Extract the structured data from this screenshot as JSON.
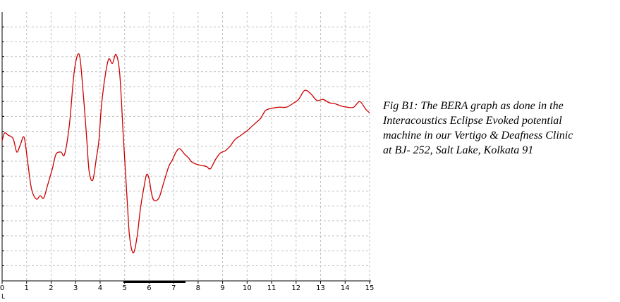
{
  "caption": {
    "lines": [
      "Fig B1: The BERA graph as done in the",
      "Interacoustics Eclipse Evoked potential",
      "machine in our Vertigo & Deafness Clinic",
      "at BJ- 252, Salt Lake, Kolkata 91"
    ]
  },
  "chart_data": {
    "type": "line",
    "title": "",
    "xlabel": "",
    "ylabel": "",
    "x_ticks": [
      "0",
      "1",
      "2",
      "3",
      "4",
      "5",
      "6",
      "7",
      "8",
      "9",
      "10",
      "11",
      "12",
      "13",
      "14",
      "15"
    ],
    "x_small_label": "L",
    "xlim": [
      0,
      15
    ],
    "ylim": [
      -1.2,
      1.2
    ],
    "grid": true,
    "series": [
      {
        "color": "#cc0000",
        "x": [
          0,
          0.1,
          0.25,
          0.45,
          0.6,
          0.75,
          0.9,
          1.05,
          1.2,
          1.4,
          1.55,
          1.7,
          1.85,
          2.05,
          2.2,
          2.4,
          2.55,
          2.75,
          2.95,
          3.15,
          3.3,
          3.45,
          3.55,
          3.7,
          3.85,
          3.95,
          4.05,
          4.2,
          4.35,
          4.5,
          4.65,
          4.8,
          4.95,
          5.1,
          5.2,
          5.35,
          5.5,
          5.65,
          5.8,
          5.9,
          6.0,
          6.1,
          6.2,
          6.4,
          6.6,
          6.8,
          6.95,
          7.1,
          7.25,
          7.45,
          7.6,
          7.75,
          7.95,
          8.15,
          8.35,
          8.5,
          8.7,
          8.9,
          9.1,
          9.3,
          9.5,
          9.75,
          10.0,
          10.15,
          10.35,
          10.55,
          10.75,
          11.0,
          11.3,
          11.6,
          11.85,
          12.1,
          12.35,
          12.6,
          12.85,
          13.1,
          13.35,
          13.6,
          13.85,
          14.1,
          14.35,
          14.6,
          14.85,
          15.0
        ],
        "values": [
          0.05,
          0.12,
          0.1,
          0.07,
          -0.05,
          0.02,
          0.08,
          -0.15,
          -0.38,
          -0.47,
          -0.44,
          -0.46,
          -0.35,
          -0.2,
          -0.07,
          -0.05,
          -0.07,
          0.2,
          0.68,
          0.82,
          0.5,
          0.08,
          -0.22,
          -0.3,
          -0.1,
          0.05,
          0.35,
          0.62,
          0.78,
          0.74,
          0.82,
          0.65,
          0.08,
          -0.46,
          -0.8,
          -0.95,
          -0.82,
          -0.55,
          -0.35,
          -0.25,
          -0.29,
          -0.42,
          -0.48,
          -0.46,
          -0.32,
          -0.18,
          -0.12,
          -0.05,
          -0.02,
          -0.07,
          -0.1,
          -0.14,
          -0.16,
          -0.17,
          -0.18,
          -0.2,
          -0.12,
          -0.06,
          -0.04,
          0.0,
          0.06,
          0.1,
          0.14,
          0.17,
          0.21,
          0.25,
          0.32,
          0.34,
          0.35,
          0.35,
          0.38,
          0.42,
          0.5,
          0.47,
          0.41,
          0.42,
          0.39,
          0.38,
          0.36,
          0.35,
          0.35,
          0.4,
          0.33,
          0.3
        ]
      }
    ]
  }
}
